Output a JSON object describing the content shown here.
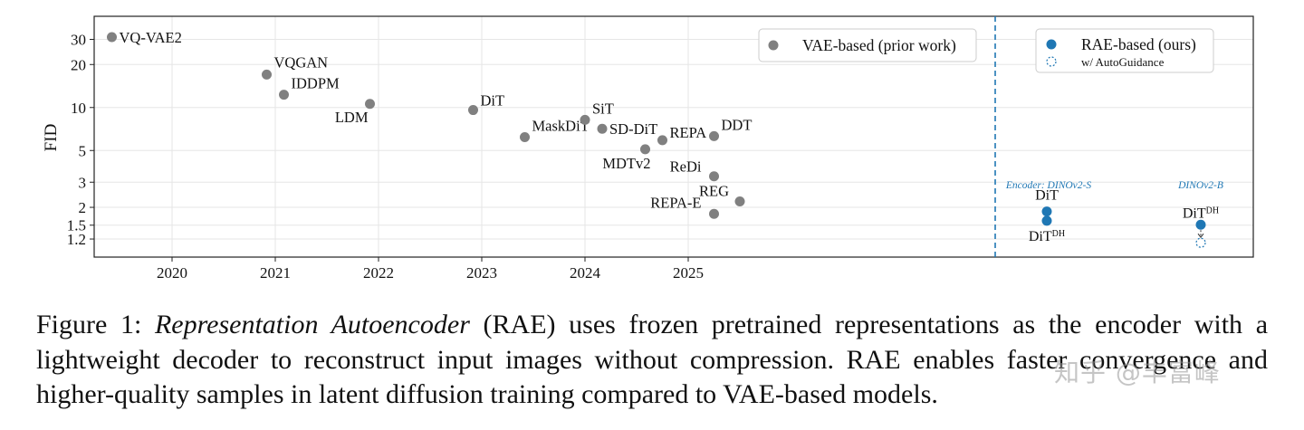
{
  "chart_data": {
    "type": "scatter",
    "ylabel": "FID",
    "yscale": "log",
    "ylim": [
      1.1,
      36
    ],
    "yticks": [
      1.2,
      1.5,
      2,
      3,
      5,
      10,
      20,
      30
    ],
    "yticklabels": [
      "1.2",
      "1.5",
      "2",
      "3",
      "5",
      "10",
      "20",
      "30"
    ],
    "xticks": [
      "2020",
      "2021",
      "2022",
      "2023",
      "2024",
      "2025"
    ],
    "grid": true,
    "legend": {
      "vae": "VAE-based (prior work)",
      "rae": "RAE-based (ours)",
      "autoguidance": "w/ AutoGuidance"
    },
    "colors": {
      "vae": "#808080",
      "rae": "#1f77b4",
      "divider": "#1f77b4"
    },
    "vae_points": [
      {
        "label": "VQ-VAE2",
        "date": "2019-06",
        "fid": 31.1
      },
      {
        "label": "VQGAN",
        "date": "2020-12",
        "fid": 17.0
      },
      {
        "label": "IDDPM",
        "date": "2021-02",
        "fid": 12.3
      },
      {
        "label": "LDM",
        "date": "2021-12",
        "fid": 10.6
      },
      {
        "label": "DiT",
        "date": "2022-12",
        "fid": 9.6
      },
      {
        "label": "MaskDiT",
        "date": "2023-06",
        "fid": 6.2
      },
      {
        "label": "SiT",
        "date": "2024-01",
        "fid": 8.2
      },
      {
        "label": "SD-DiT",
        "date": "2024-03",
        "fid": 7.1
      },
      {
        "label": "MDTv2",
        "date": "2024-08",
        "fid": 5.1
      },
      {
        "label": "REPA",
        "date": "2024-10",
        "fid": 5.9
      },
      {
        "label": "DDT",
        "date": "2025-04",
        "fid": 6.3
      },
      {
        "label": "ReDi",
        "date": "2025-04",
        "fid": 3.3
      },
      {
        "label": "REPA-E",
        "date": "2025-04",
        "fid": 1.8
      },
      {
        "label": "REG",
        "date": "2025-07",
        "fid": 2.2
      }
    ],
    "rae_groups": [
      {
        "encoder": "Encoder: DINOv2-S",
        "points": [
          {
            "label": "DiT",
            "fid": 1.87
          },
          {
            "label": "DiT",
            "sup": "DH",
            "fid": 1.61
          }
        ]
      },
      {
        "encoder": "DINOv2-B",
        "points": [
          {
            "label": "DiT",
            "sup": "DH",
            "fid": 1.51
          },
          {
            "label": "",
            "fid": 1.13,
            "autoguidance": true
          }
        ]
      }
    ]
  },
  "caption": {
    "prefix": "Figure 1:",
    "title": "Representation Autoencoder",
    "body": "(RAE) uses frozen pretrained representations as the encoder with a lightweight decoder to reconstruct input images without compression. RAE enables faster convergence and higher-quality samples in latent diffusion training compared to VAE-based models."
  },
  "watermark": "知乎 @丰富峰"
}
